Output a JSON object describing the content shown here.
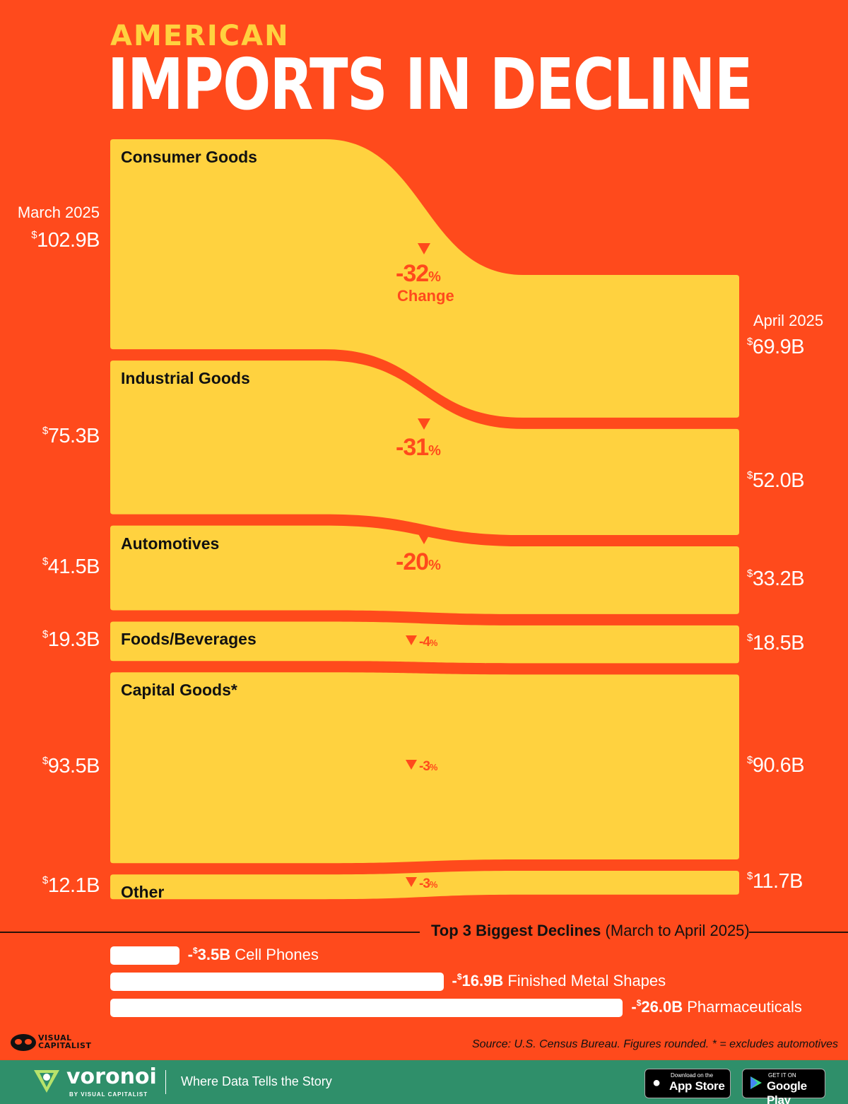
{
  "header": {
    "kicker": "AMERICAN",
    "headline": "IMPORTS IN DECLINE"
  },
  "chart_data": {
    "type": "sankey-flow",
    "title": "AMERICAN IMPORTS IN DECLINE",
    "left_label": "March 2025",
    "right_label": "April 2025",
    "change_label": "Change",
    "unit": "$B",
    "categories": [
      {
        "name": "Consumer Goods",
        "march": 102.9,
        "april": 69.9,
        "change_pct": -32,
        "march_label": "102.9B",
        "april_label": "69.9B",
        "pct_label": "-32"
      },
      {
        "name": "Industrial Goods",
        "march": 75.3,
        "april": 52.0,
        "change_pct": -31,
        "march_label": "75.3B",
        "april_label": "52.0B",
        "pct_label": "-31"
      },
      {
        "name": "Automotives",
        "march": 41.5,
        "april": 33.2,
        "change_pct": -20,
        "march_label": "41.5B",
        "april_label": "33.2B",
        "pct_label": "-20"
      },
      {
        "name": "Foods/Beverages",
        "march": 19.3,
        "april": 18.5,
        "change_pct": -4,
        "march_label": "19.3B",
        "april_label": "18.5B",
        "pct_label": "-4"
      },
      {
        "name": "Capital Goods*",
        "march": 93.5,
        "april": 90.6,
        "change_pct": -3,
        "march_label": "93.5B",
        "april_label": "90.6B",
        "pct_label": "-3"
      },
      {
        "name": "Other",
        "march": 12.1,
        "april": 11.7,
        "change_pct": -3,
        "march_label": "12.1B",
        "april_label": "11.7B",
        "pct_label": "-3"
      }
    ],
    "colors": {
      "background": "#ff4a1c",
      "flow": "#ffd23f",
      "accent": "#ffd23f",
      "text": "#ffffff"
    }
  },
  "declines": {
    "title_bold": "Top 3 Biggest Declines",
    "title_rest": "(March to April 2025)",
    "chart_data": {
      "type": "bar",
      "categories": [
        "Cell Phones",
        "Finished Metal Shapes",
        "Pharmaceuticals"
      ],
      "values": [
        -3.5,
        -16.9,
        -26.0
      ],
      "value_labels": [
        "3.5B",
        "16.9B",
        "26.0B"
      ],
      "unit": "$B"
    }
  },
  "source": "Source: U.S. Census Bureau. Figures rounded. * = excludes automotives",
  "brand": {
    "vc_line1": "VISUAL",
    "vc_line2": "CAPITALIST",
    "name": "voronoi",
    "by": "BY VISUAL CAPITALIST",
    "tagline": "Where Data Tells the Story",
    "app_store_small": "Download on the",
    "app_store": "App Store",
    "google_small": "GET IT ON",
    "google": "Google Play"
  }
}
